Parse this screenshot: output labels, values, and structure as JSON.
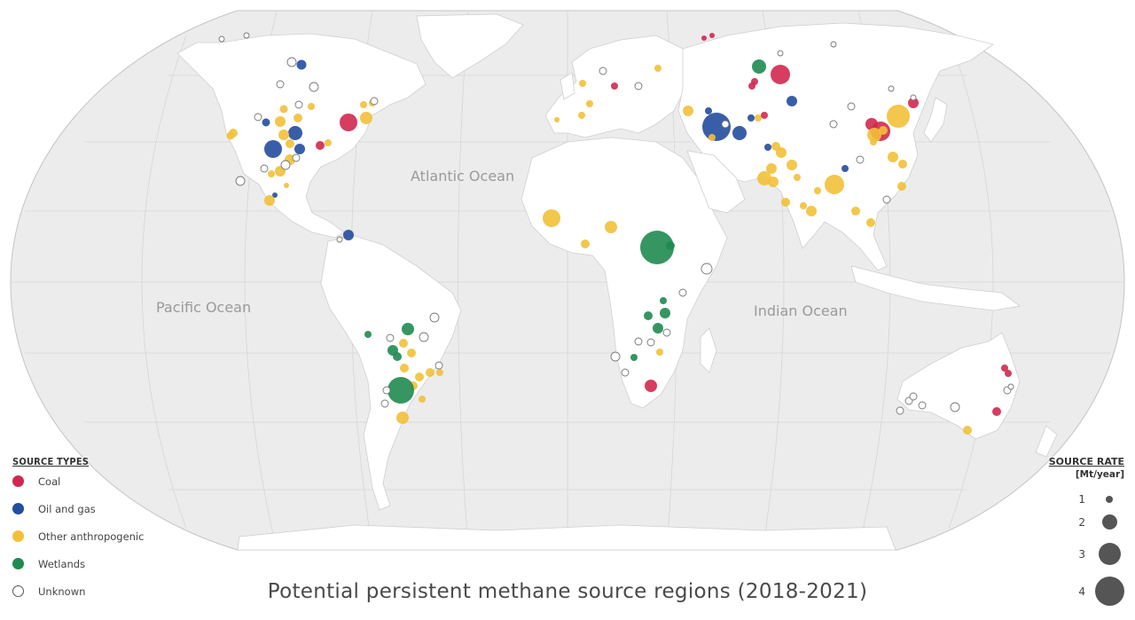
{
  "title": "Potential persistent methane source regions (2018-2021)",
  "ocean_labels": [
    {
      "id": "atlantic",
      "text": "Atlantic Ocean"
    },
    {
      "id": "pacific",
      "text": "Pacific Ocean"
    },
    {
      "id": "indian",
      "text": "Indian Ocean"
    }
  ],
  "legend_types": {
    "heading": "SOURCE TYPES",
    "items": [
      {
        "key": "coal",
        "label": "Coal",
        "color": "#d2284f"
      },
      {
        "key": "oil_gas",
        "label": "Oil and gas",
        "color": "#244d9e"
      },
      {
        "key": "other",
        "label": "Other anthropogenic",
        "color": "#f2c038"
      },
      {
        "key": "wetlands",
        "label": "Wetlands",
        "color": "#1f8b50"
      },
      {
        "key": "unknown",
        "label": "Unknown",
        "color": "#ffffff"
      }
    ]
  },
  "legend_rate": {
    "heading": "SOURCE RATE",
    "unit": "[Mt/year]",
    "items": [
      {
        "value": "1",
        "rate": 1
      },
      {
        "value": "2",
        "rate": 2
      },
      {
        "value": "3",
        "rate": 3
      },
      {
        "value": "4",
        "rate": 4
      }
    ]
  },
  "colors": {
    "land": "#ffffff",
    "ocean": "#ececec",
    "border": "#c8c8c8",
    "grid": "#d6d6d6",
    "rate_dot": "#555555"
  }
}
